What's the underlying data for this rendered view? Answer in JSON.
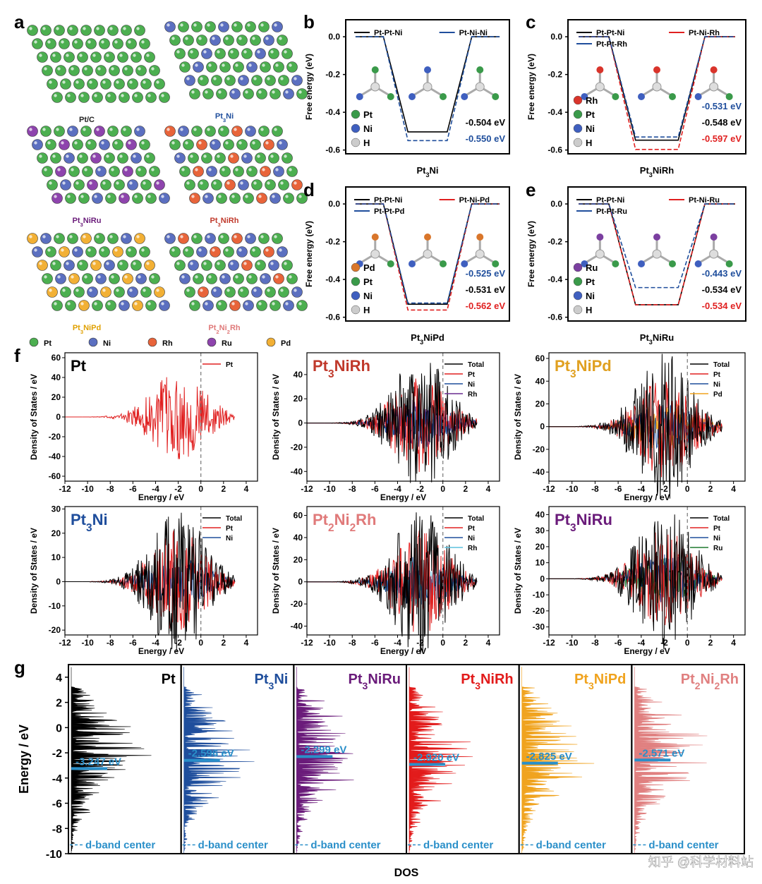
{
  "panel_letters": [
    "a",
    "b",
    "c",
    "d",
    "e",
    "f",
    "g"
  ],
  "panel_a": {
    "structures": [
      "Pt/C",
      "Pt3Ni",
      "Pt3NiRu",
      "Pt3NiRh",
      "Pt3NiPd",
      "Pt2Ni2Rh"
    ],
    "legend": [
      "Pt",
      "Ni",
      "Rh",
      "Ru",
      "Pd"
    ],
    "colors": {
      "Pt": "#4caf50",
      "Ni": "#5b6fc0",
      "Rh": "#e8643a",
      "Ru": "#8e44ad",
      "Pd": "#f2b035"
    }
  },
  "free_energy": {
    "ylabel": "Free energy (eV)",
    "yticks": [
      "0.0",
      "-0.2",
      "-0.4",
      "-0.6"
    ],
    "ylim": [
      -0.62,
      0.09
    ],
    "panels": [
      {
        "letter": "b",
        "xlabel": "Pt3Ni",
        "legend": [
          "Pt-Pt-Ni",
          "Pt-Ni-Ni"
        ],
        "atoms": [
          "Pt",
          "Ni",
          "H"
        ],
        "values": [
          "-0.504 eV",
          "-0.550 eV"
        ],
        "series": [
          {
            "name": "Pt-Pt-Ni",
            "color": "#000000",
            "min": -0.504
          },
          {
            "name": "Pt-Ni-Ni",
            "color": "#1f4e9c",
            "min": -0.55
          }
        ]
      },
      {
        "letter": "c",
        "xlabel": "Pt3NiRh",
        "legend": [
          "Pt-Pt-Ni",
          "Pt-Ni-Rh",
          "Pt-Pt-Rh"
        ],
        "atoms": [
          "Rh",
          "Pt",
          "Ni",
          "H"
        ],
        "values": [
          "-0.531 eV",
          "-0.548 eV",
          "-0.597 eV"
        ],
        "series": [
          {
            "name": "Pt-Pt-Ni",
            "color": "#000000",
            "min": -0.548
          },
          {
            "name": "Pt-Ni-Rh",
            "color": "#e02020",
            "min": -0.597
          },
          {
            "name": "Pt-Pt-Rh",
            "color": "#1f4e9c",
            "min": -0.531
          }
        ]
      },
      {
        "letter": "d",
        "xlabel": "Pt3NiPd",
        "legend": [
          "Pt-Pt-Ni",
          "Pt-Ni-Pd",
          "Pt-Pt-Pd"
        ],
        "atoms": [
          "Pd",
          "Pt",
          "Ni",
          "H"
        ],
        "values": [
          "-0.525 eV",
          "-0.531 eV",
          "-0.562 eV"
        ],
        "series": [
          {
            "name": "Pt-Pt-Ni",
            "color": "#000000",
            "min": -0.531
          },
          {
            "name": "Pt-Ni-Pd",
            "color": "#e02020",
            "min": -0.562
          },
          {
            "name": "Pt-Pt-Pd",
            "color": "#1f4e9c",
            "min": -0.525
          }
        ]
      },
      {
        "letter": "e",
        "xlabel": "Pt3NiRu",
        "legend": [
          "Pt-Pt-Ni",
          "Pt-Ni-Ru",
          "Pt-Pt-Ru"
        ],
        "atoms": [
          "Ru",
          "Pt",
          "Ni",
          "H"
        ],
        "values": [
          "-0.443 eV",
          "-0.534 eV",
          "-0.534 eV"
        ],
        "series": [
          {
            "name": "Pt-Pt-Ni",
            "color": "#000000",
            "min": -0.534
          },
          {
            "name": "Pt-Ni-Ru",
            "color": "#e02020",
            "min": -0.534
          },
          {
            "name": "Pt-Pt-Ru",
            "color": "#1f4e9c",
            "min": -0.443
          }
        ]
      }
    ]
  },
  "chart_data": [
    {
      "type": "line",
      "title": "Pt",
      "xlabel": "Energy / eV",
      "ylabel": "Density of States / eV",
      "xlim": [
        -12,
        5
      ],
      "ylim": [
        -65,
        65
      ],
      "yticks": [
        -60,
        -40,
        -20,
        0,
        20,
        40,
        60
      ],
      "legend": [
        "Pt"
      ],
      "fermi_level": 0
    },
    {
      "type": "line",
      "title": "Pt3NiRh",
      "xlabel": "Energy / eV",
      "ylabel": "Density of States / eV",
      "xlim": [
        -12,
        5
      ],
      "ylim": [
        -48,
        58
      ],
      "yticks": [
        -40,
        -20,
        0,
        20,
        40
      ],
      "legend": [
        "Total",
        "Pt",
        "Ni",
        "Rh"
      ],
      "fermi_level": 0
    },
    {
      "type": "line",
      "title": "Pt3NiPd",
      "xlabel": "Energy / eV",
      "ylabel": "Density of States / eV",
      "xlim": [
        -12,
        5
      ],
      "ylim": [
        -48,
        65
      ],
      "yticks": [
        -40,
        -20,
        0,
        20,
        40,
        60
      ],
      "legend": [
        "Total",
        "Pt",
        "Ni",
        "Pd"
      ],
      "fermi_level": 0
    },
    {
      "type": "line",
      "title": "Pt3Ni",
      "xlabel": "Energy / eV",
      "ylabel": "Density of States / eV",
      "xlim": [
        -12,
        5
      ],
      "ylim": [
        -22,
        31
      ],
      "yticks": [
        -20,
        -10,
        0,
        10,
        20,
        30
      ],
      "legend": [
        "Total",
        "Pt",
        "Ni"
      ],
      "fermi_level": 0
    },
    {
      "type": "line",
      "title": "Pt2Ni2Rh",
      "xlabel": "Energy / eV",
      "ylabel": "Density of States / eV",
      "xlim": [
        -12,
        5
      ],
      "ylim": [
        -48,
        68
      ],
      "yticks": [
        -40,
        -20,
        0,
        20,
        40,
        60
      ],
      "legend": [
        "Total",
        "Pt",
        "Ni",
        "Rh"
      ],
      "fermi_level": 0
    },
    {
      "type": "line",
      "title": "Pt3NiRu",
      "xlabel": "Energy / eV",
      "ylabel": "Density of States / eV",
      "xlim": [
        -12,
        5
      ],
      "ylim": [
        -35,
        45
      ],
      "yticks": [
        -30,
        -20,
        -10,
        0,
        10,
        20,
        30,
        40
      ],
      "legend": [
        "Total",
        "Pt",
        "Ni",
        "Ru"
      ],
      "fermi_level": 0
    },
    {
      "type": "area",
      "xlabel": "DOS",
      "ylabel": "Energy / eV",
      "ylim": [
        -10,
        5
      ],
      "yticks": [
        -10,
        -8,
        -6,
        -4,
        -2,
        0,
        2,
        4
      ],
      "series": [
        {
          "name": "Pt",
          "d_band_center": -3.247,
          "label": "-3.247 eV",
          "color": "#000000"
        },
        {
          "name": "Pt3Ni",
          "d_band_center": -2.596,
          "label": "-2.596 eV",
          "color": "#1f4e9c"
        },
        {
          "name": "Pt3NiRu",
          "d_band_center": -2.299,
          "label": "-2.299 eV",
          "color": "#6a1b7a"
        },
        {
          "name": "Pt3NiRh",
          "d_band_center": -2.92,
          "label": "-2.920 eV",
          "color": "#e21b1b"
        },
        {
          "name": "Pt3NiPd",
          "d_band_center": -2.825,
          "label": "-2.825 eV",
          "color": "#f0a31e"
        },
        {
          "name": "Pt2Ni2Rh",
          "d_band_center": -2.571,
          "label": "-2.571 eV",
          "color": "#e08080"
        }
      ],
      "annotation": "d-band center"
    }
  ],
  "colors": {
    "total": "#000000",
    "Pt": "#e02020",
    "Ni": "#1f4e9c",
    "Rh": "#6a2c91",
    "Pd": "#f0a31e",
    "Ru": "#1e7a2e",
    "Rh_light": "#5bc0de",
    "fermi": "#777777",
    "dband": "#2a8fc9"
  },
  "watermark": "知乎 @科学材料站"
}
